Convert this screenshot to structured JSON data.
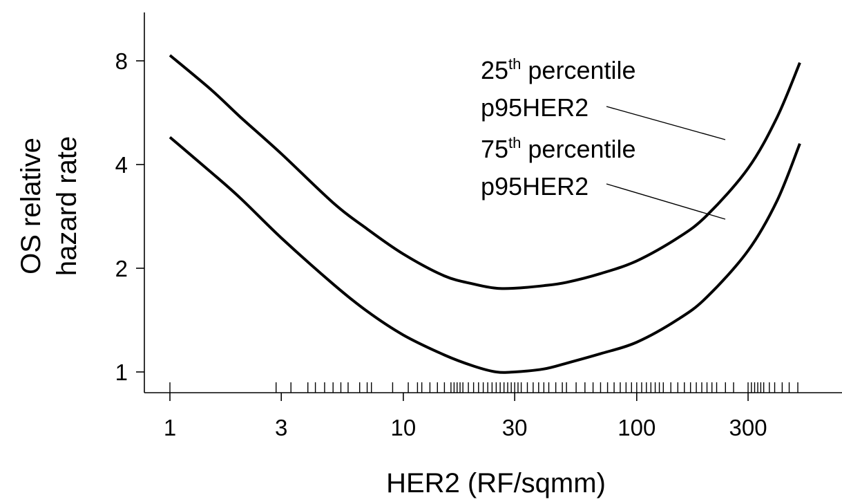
{
  "chart_data": {
    "type": "line",
    "xlabel": "HER2  (RF/sqmm)",
    "ylabel": [
      "OS relative",
      "hazard rate"
    ],
    "x_scale": "log",
    "y_scale": "log",
    "xlim": [
      1,
      500
    ],
    "ylim": [
      1,
      8
    ],
    "x_ticks": [
      1,
      3,
      10,
      30,
      100,
      300
    ],
    "x_tick_labels": [
      "1",
      "3",
      "10",
      "30",
      "100",
      "300"
    ],
    "y_ticks": [
      1,
      2,
      4,
      8
    ],
    "y_tick_labels": [
      "1",
      "2",
      "4",
      "8"
    ],
    "grid": false,
    "line_color": "#000000",
    "series": [
      {
        "name": "25th percentile p95HER2",
        "x": [
          1,
          1.5,
          2,
          3,
          5,
          7,
          10,
          15,
          20,
          25,
          30,
          40,
          50,
          70,
          100,
          150,
          200,
          300,
          400,
          500
        ],
        "y": [
          8.3,
          6.6,
          5.5,
          4.3,
          3.1,
          2.6,
          2.2,
          1.9,
          1.8,
          1.75,
          1.75,
          1.78,
          1.82,
          1.93,
          2.1,
          2.45,
          2.85,
          3.9,
          5.5,
          7.9
        ]
      },
      {
        "name": "75th percentile p95HER2",
        "x": [
          1,
          1.5,
          2,
          3,
          5,
          7,
          10,
          15,
          20,
          25,
          30,
          40,
          50,
          70,
          100,
          150,
          200,
          300,
          400,
          500
        ],
        "y": [
          4.8,
          3.8,
          3.2,
          2.45,
          1.8,
          1.5,
          1.28,
          1.12,
          1.04,
          1.0,
          1.0,
          1.02,
          1.06,
          1.13,
          1.22,
          1.42,
          1.65,
          2.25,
          3.15,
          4.6
        ]
      }
    ],
    "annotations": [
      {
        "main": "25",
        "sup": "th",
        "rest": " percentile",
        "line2": "p95HER2"
      },
      {
        "main": "75",
        "sup": "th",
        "rest": " percentile",
        "line2": "p95HER2"
      }
    ],
    "rug_x": [
      1,
      2.85,
      3.3,
      3.9,
      4.2,
      4.6,
      5.0,
      5.4,
      5.8,
      6.5,
      7.0,
      7.3,
      9.0,
      10.5,
      11.5,
      12,
      13,
      14,
      15,
      16,
      16.5,
      17,
      17.5,
      18,
      19,
      20,
      21,
      22,
      23,
      24,
      25,
      26,
      27,
      28,
      29,
      30,
      31,
      32,
      34,
      36,
      38,
      40,
      42,
      45,
      48,
      50,
      55,
      60,
      65,
      70,
      75,
      80,
      85,
      90,
      95,
      100,
      105,
      110,
      115,
      120,
      125,
      130,
      140,
      150,
      160,
      170,
      180,
      190,
      200,
      210,
      220,
      240,
      260,
      300,
      310,
      320,
      330,
      340,
      350,
      370,
      390,
      420,
      450,
      490
    ]
  }
}
